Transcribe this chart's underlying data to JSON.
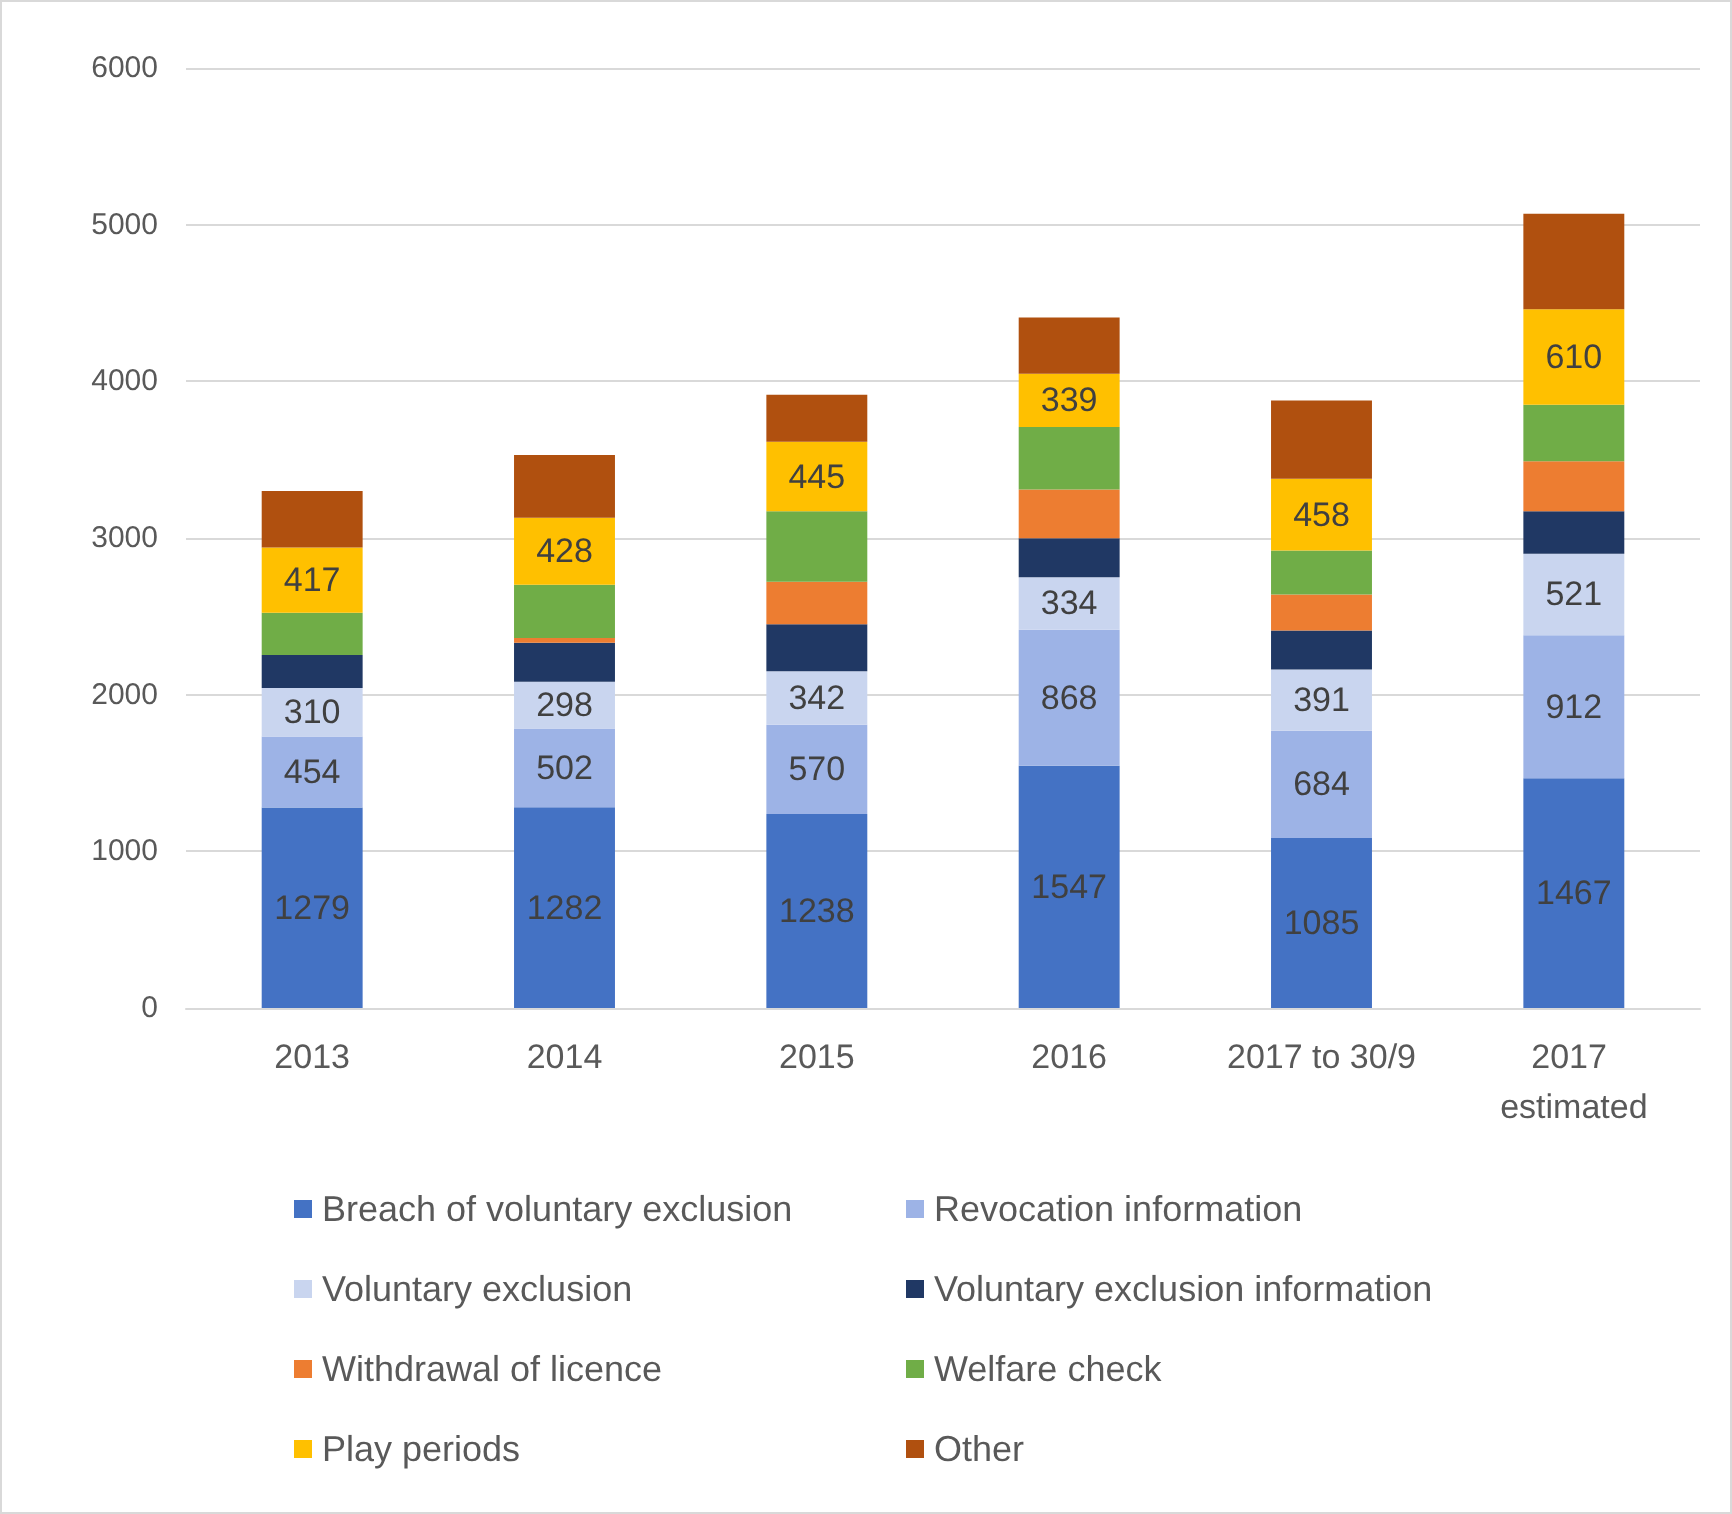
{
  "chart_data": {
    "type": "bar",
    "stacked": true,
    "categories": [
      "2013",
      "2014",
      "2015",
      "2016",
      "2017 to 30/9",
      "2017 estimated"
    ],
    "ylim": [
      0,
      6000
    ],
    "yticks": [
      0,
      1000,
      2000,
      3000,
      4000,
      5000,
      6000
    ],
    "grid": "y",
    "legend": "bottom",
    "series": [
      {
        "name": "Breach of voluntary exclusion",
        "color": "#4472c4",
        "values": [
          1279,
          1282,
          1238,
          1547,
          1085,
          1467
        ],
        "value_labels": [
          "1279",
          "1282",
          "1238",
          "1547",
          "1085",
          "1467"
        ]
      },
      {
        "name": "Revocation information",
        "color": "#9db3e6",
        "values": [
          454,
          502,
          570,
          868,
          684,
          912
        ],
        "value_labels": [
          "454",
          "502",
          "570",
          "868",
          "684",
          "912"
        ]
      },
      {
        "name": "Voluntary exclusion",
        "color": "#c9d5ef",
        "values": [
          310,
          298,
          342,
          334,
          391,
          521
        ],
        "value_labels": [
          "310",
          "298",
          "342",
          "334",
          "391",
          "521"
        ]
      },
      {
        "name": "Voluntary exclusion information",
        "color": "#203864",
        "values": [
          210,
          250,
          300,
          250,
          250,
          270
        ]
      },
      {
        "name": "Withdrawal of licence",
        "color": "#ed7d31",
        "values": [
          0,
          30,
          270,
          310,
          230,
          320
        ]
      },
      {
        "name": "Welfare check",
        "color": "#70ad47",
        "values": [
          270,
          340,
          450,
          400,
          280,
          360
        ]
      },
      {
        "name": "Play periods",
        "color": "#ffc000",
        "values": [
          417,
          428,
          445,
          339,
          458,
          610
        ],
        "value_labels": [
          "417",
          "428",
          "445",
          "339",
          "458",
          "610"
        ]
      },
      {
        "name": "Other",
        "color": "#b0500f",
        "values": [
          360,
          400,
          300,
          360,
          500,
          610
        ]
      }
    ]
  }
}
